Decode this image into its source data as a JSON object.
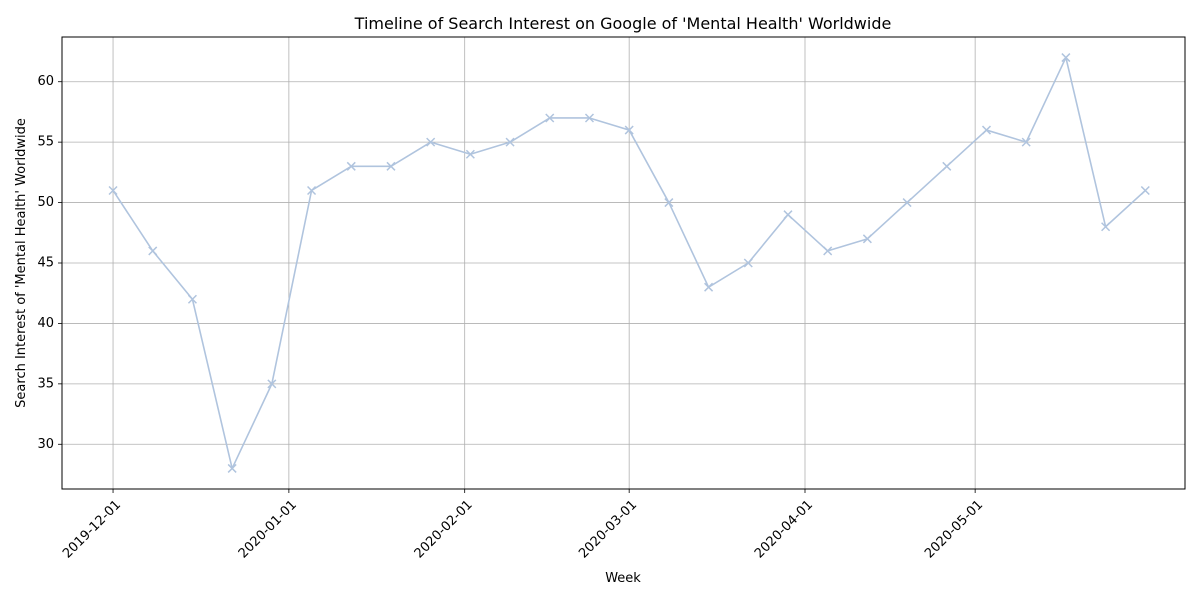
{
  "chart_data": {
    "type": "line",
    "title": "Timeline of Search Interest on Google of 'Mental Health' Worldwide",
    "xlabel": "Week",
    "ylabel": "Search Interest of 'Mental Health' Worldwide",
    "x_ticks": [
      "2019-12-01",
      "2020-01-01",
      "2020-02-01",
      "2020-03-01",
      "2020-04-01",
      "2020-05-01"
    ],
    "y_ticks": [
      30,
      35,
      40,
      45,
      50,
      55,
      60
    ],
    "xlim": [
      "2019-11-22",
      "2020-06-07"
    ],
    "ylim": [
      26.3,
      63.7
    ],
    "grid": true,
    "series": [
      {
        "color": "#b0c4de",
        "marker": "x",
        "x": [
          "2019-12-01",
          "2019-12-08",
          "2019-12-15",
          "2019-12-22",
          "2019-12-29",
          "2020-01-05",
          "2020-01-12",
          "2020-01-19",
          "2020-01-26",
          "2020-02-02",
          "2020-02-09",
          "2020-02-16",
          "2020-02-23",
          "2020-03-01",
          "2020-03-08",
          "2020-03-15",
          "2020-03-22",
          "2020-03-29",
          "2020-04-05",
          "2020-04-12",
          "2020-04-19",
          "2020-04-26",
          "2020-05-03",
          "2020-05-10",
          "2020-05-17",
          "2020-05-24",
          "2020-05-31"
        ],
        "values": [
          51,
          46,
          42,
          28,
          35,
          51,
          53,
          53,
          55,
          54,
          55,
          57,
          57,
          56,
          50,
          43,
          45,
          49,
          46,
          47,
          50,
          53,
          56,
          55,
          62,
          48,
          51
        ]
      }
    ]
  }
}
